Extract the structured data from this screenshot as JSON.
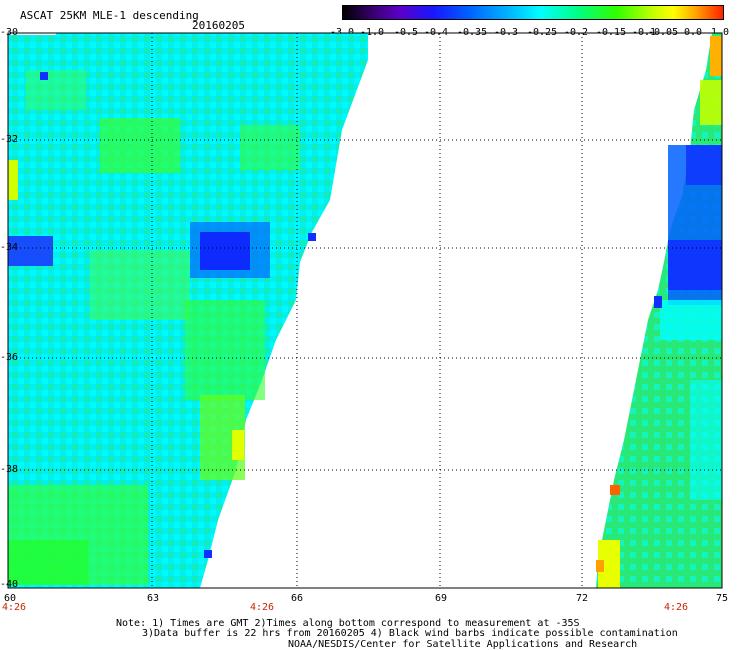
{
  "header": {
    "title": "ASCAT 25KM MLE-1 descending",
    "date": "20160205"
  },
  "colorbar": {
    "labels": [
      "-3.0",
      "-1.0",
      "-0.5",
      "-0.4",
      "-0.35",
      "-0.3",
      "-0.25",
      "-0.2",
      "-0.15",
      "-0.1",
      "-0.05",
      "0.0",
      "1.0"
    ]
  },
  "axes": {
    "lat_labels": [
      "-30",
      "-32",
      "-34",
      "-36",
      "-38",
      "-40"
    ],
    "lon_labels": [
      "60",
      "63",
      "66",
      "69",
      "72",
      "75"
    ],
    "time_labels": [
      "4:26",
      "4:26",
      "4:26"
    ]
  },
  "notes": {
    "line1": "Note: 1) Times are GMT 2)Times along bottom correspond to measurement at -35S",
    "line2": "3)Data buffer is 22 hrs from 20160205 4) Black wind barbs indicate possible contamination",
    "line3": "NOAA/NESDIS/Center for Satellite Applications and Research"
  },
  "colors": {
    "cyan": "#00ffff",
    "green": "#30ff40",
    "blue": "#0030ff",
    "time_label": "#cc2200"
  }
}
